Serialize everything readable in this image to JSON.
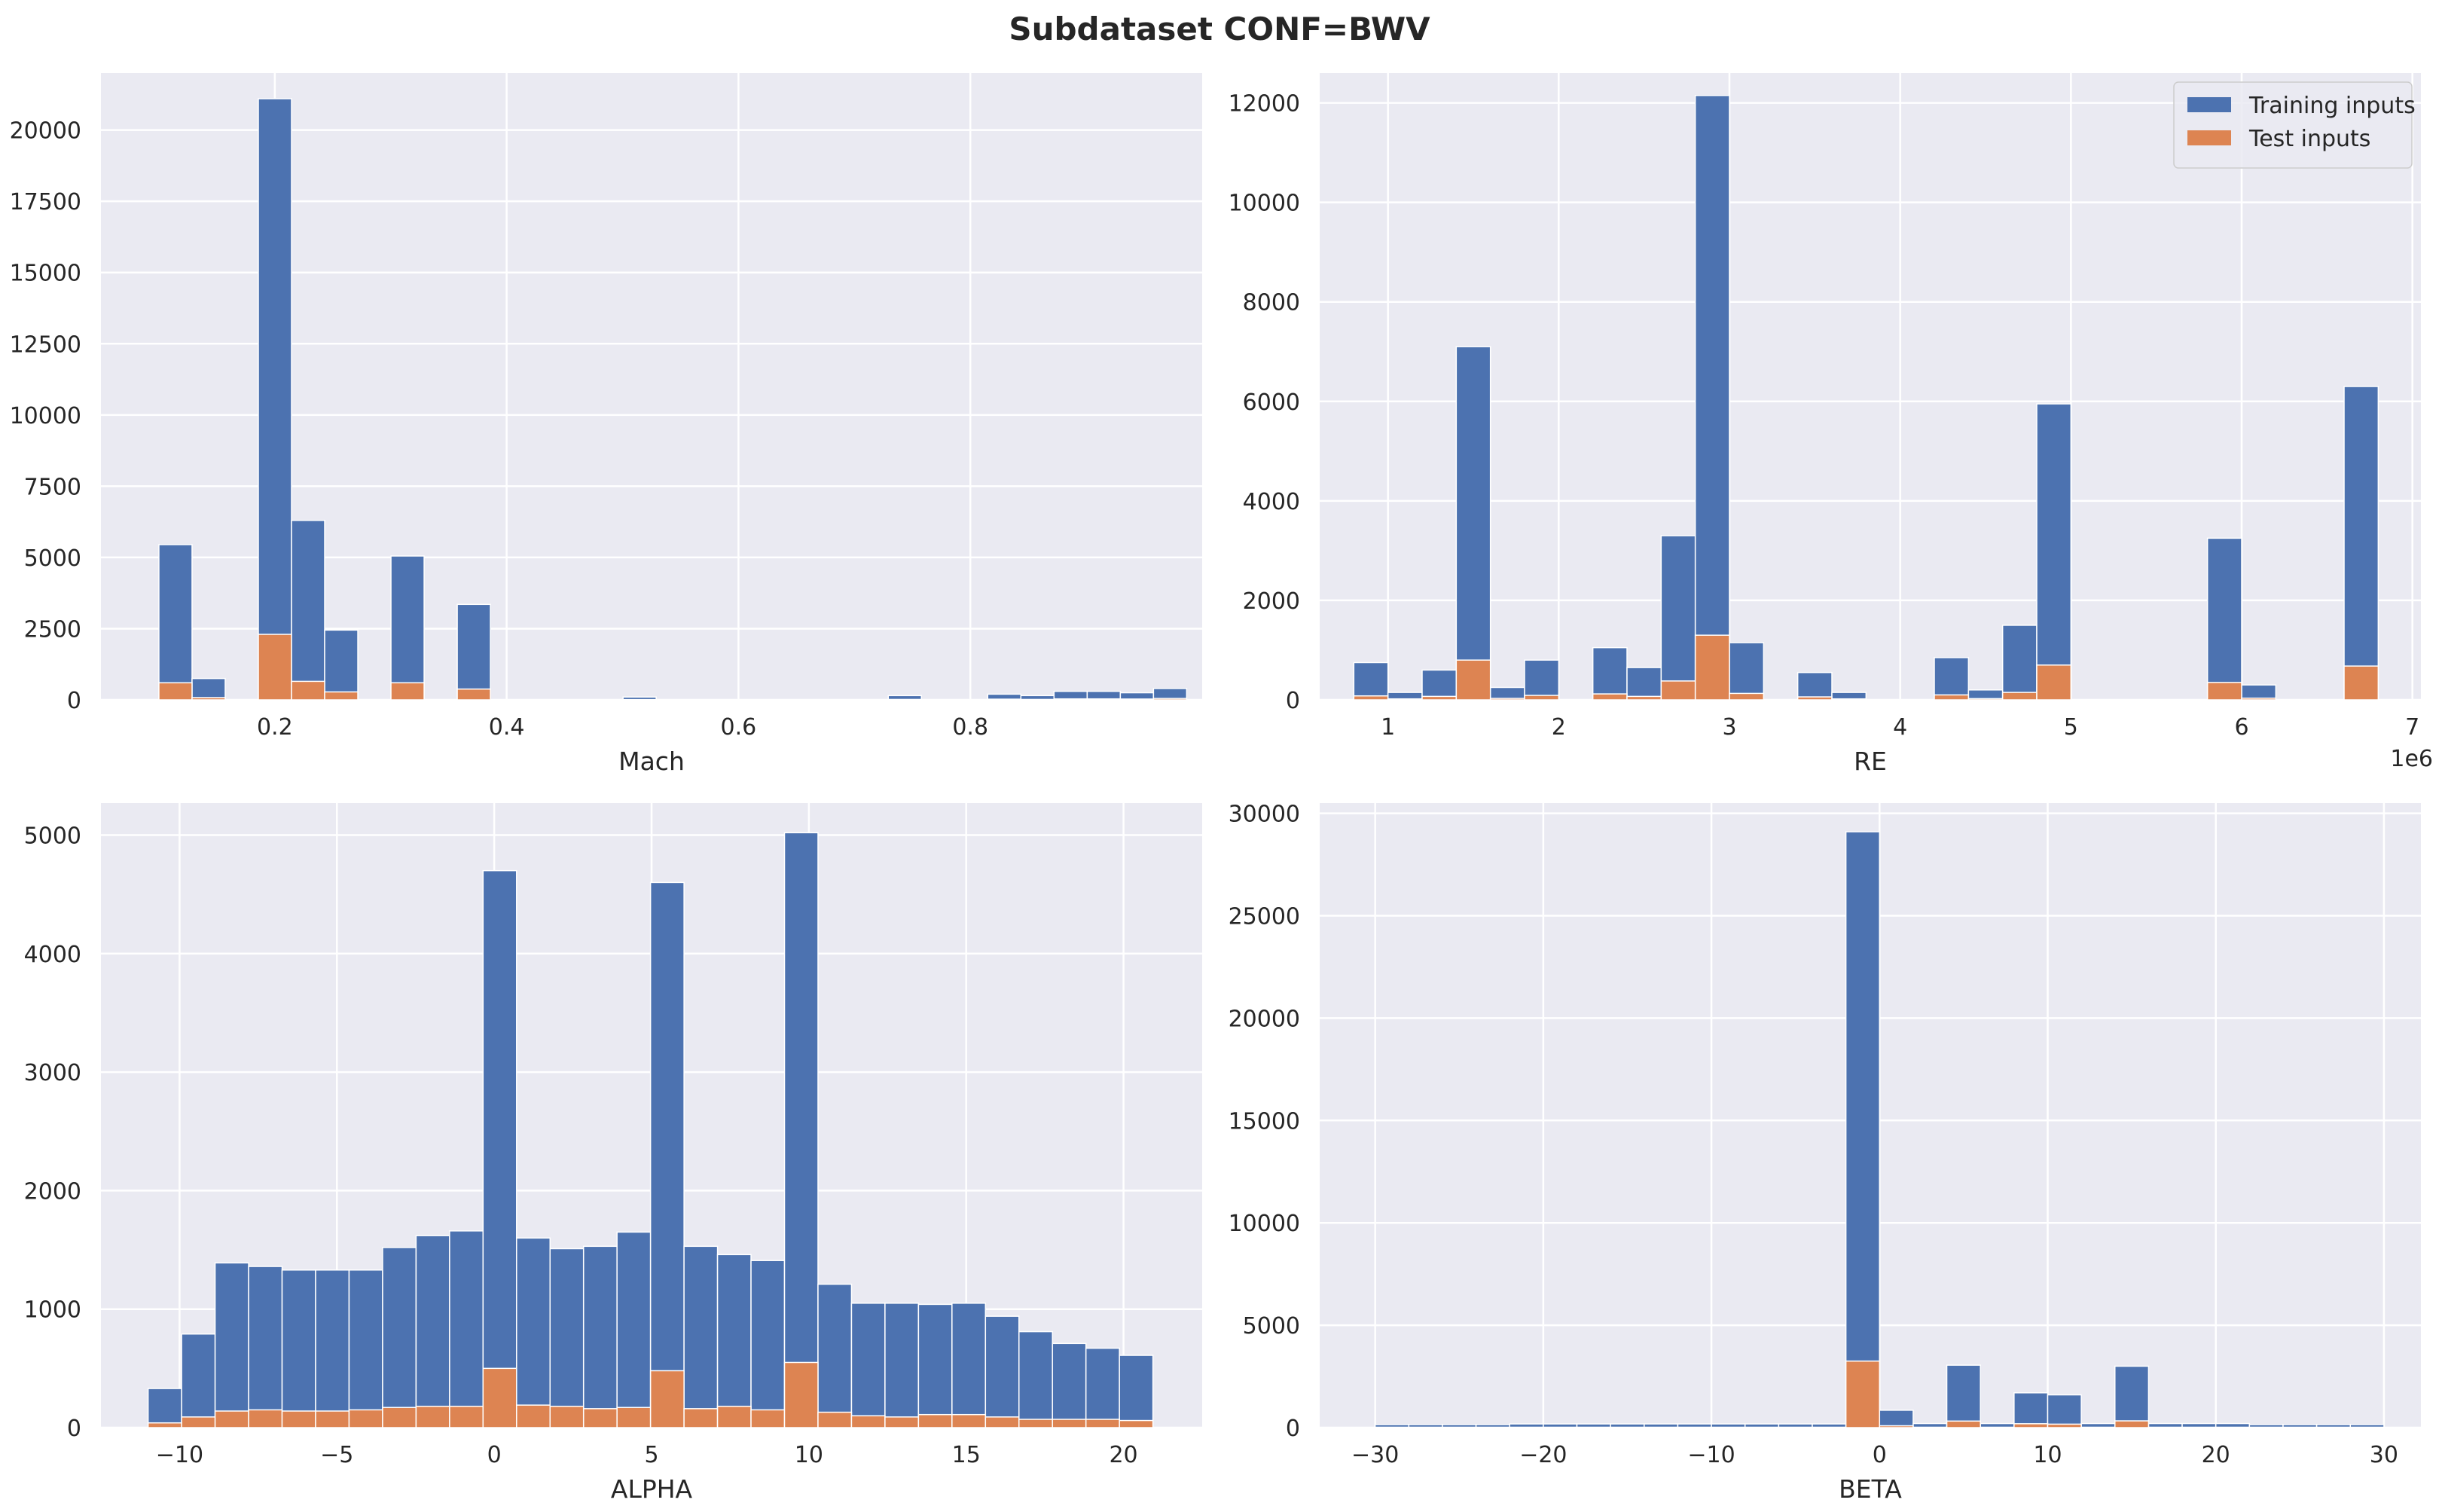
{
  "title": "Subdataset CONF=BWV",
  "colors": {
    "training": "#4c72b0",
    "test": "#dd8452",
    "axes_bg": "#eaeaf2",
    "grid": "#ffffff"
  },
  "legend": {
    "placement": "upper-right",
    "subplot": 1,
    "entries": [
      "Training inputs",
      "Test inputs"
    ]
  },
  "chart_data": [
    {
      "type": "bar",
      "name": "mach-histogram",
      "xlabel": "Mach",
      "offset_text": "",
      "xlim": [
        0.05,
        1.0
      ],
      "ylim": [
        0,
        22000
      ],
      "xticks": [
        0.2,
        0.4,
        0.6,
        0.8
      ],
      "xtick_labels": [
        "0.2",
        "0.4",
        "0.6",
        "0.8"
      ],
      "yticks": [
        0,
        2500,
        5000,
        7500,
        10000,
        12500,
        15000,
        17500,
        20000
      ],
      "ytick_labels": [
        "0",
        "2500",
        "5000",
        "7500",
        "10000",
        "12500",
        "15000",
        "17500",
        "20000"
      ],
      "bin_start": 0.1,
      "bin_width": 0.0286,
      "series": [
        {
          "name": "Training inputs",
          "values": [
            5450,
            750,
            0,
            21100,
            6300,
            2450,
            0,
            5050,
            0,
            3350,
            0,
            0,
            0,
            0,
            100,
            0,
            0,
            0,
            0,
            0,
            0,
            0,
            150,
            0,
            0,
            200,
            150,
            300,
            300,
            250,
            400
          ]
        },
        {
          "name": "Test inputs",
          "values": [
            600,
            80,
            0,
            2300,
            650,
            280,
            0,
            600,
            0,
            380,
            0,
            0,
            0,
            0,
            10,
            0,
            0,
            0,
            0,
            0,
            0,
            0,
            15,
            0,
            0,
            25,
            15,
            35,
            35,
            30,
            50
          ]
        }
      ]
    },
    {
      "type": "bar",
      "name": "re-histogram",
      "xlabel": "RE",
      "offset_text": "1e6",
      "xlim": [
        0.6,
        7.05
      ],
      "ylim": [
        0,
        12600
      ],
      "xticks": [
        1,
        2,
        3,
        4,
        5,
        6,
        7
      ],
      "xtick_labels": [
        "1",
        "2",
        "3",
        "4",
        "5",
        "6",
        "7"
      ],
      "yticks": [
        0,
        2000,
        4000,
        6000,
        8000,
        10000,
        12000
      ],
      "ytick_labels": [
        "0",
        "2000",
        "4000",
        "6000",
        "8000",
        "10000",
        "12000"
      ],
      "bin_start": 0.8,
      "bin_width": 0.2,
      "series": [
        {
          "name": "Training inputs",
          "values": [
            750,
            150,
            600,
            7100,
            250,
            800,
            0,
            1050,
            650,
            3300,
            12150,
            1150,
            0,
            550,
            150,
            0,
            0,
            850,
            200,
            1500,
            5950,
            0,
            0,
            0,
            0,
            3250,
            300,
            0,
            0,
            6300
          ]
        },
        {
          "name": "Test inputs",
          "values": [
            80,
            20,
            70,
            800,
            30,
            90,
            0,
            120,
            70,
            380,
            1300,
            130,
            0,
            60,
            20,
            0,
            0,
            100,
            25,
            150,
            700,
            0,
            0,
            0,
            0,
            350,
            35,
            0,
            0,
            680
          ]
        }
      ]
    },
    {
      "type": "bar",
      "name": "alpha-histogram",
      "xlabel": "ALPHA",
      "offset_text": "",
      "xlim": [
        -12.5,
        22.5
      ],
      "ylim": [
        0,
        5270
      ],
      "xticks": [
        -10,
        -5,
        0,
        5,
        10,
        15,
        20
      ],
      "xtick_labels": [
        "−10",
        "−5",
        "0",
        "5",
        "10",
        "15",
        "20"
      ],
      "yticks": [
        0,
        1000,
        2000,
        3000,
        4000,
        5000
      ],
      "ytick_labels": [
        "0",
        "1000",
        "2000",
        "3000",
        "4000",
        "5000"
      ],
      "bin_start": -11,
      "bin_width": 1.0645,
      "series": [
        {
          "name": "Training inputs",
          "values": [
            330,
            790,
            1390,
            1360,
            1330,
            1330,
            1330,
            1520,
            1620,
            1660,
            4700,
            1600,
            1510,
            1530,
            1650,
            4600,
            1530,
            1460,
            1410,
            5020,
            1210,
            1050,
            1050,
            1040,
            1050,
            940,
            810,
            710,
            670,
            610
          ]
        },
        {
          "name": "Test inputs",
          "values": [
            40,
            90,
            140,
            150,
            140,
            140,
            150,
            170,
            180,
            180,
            500,
            190,
            180,
            160,
            170,
            480,
            160,
            180,
            150,
            550,
            130,
            100,
            90,
            110,
            110,
            90,
            70,
            70,
            70,
            60
          ]
        }
      ]
    },
    {
      "type": "bar",
      "name": "beta-histogram",
      "xlabel": "BETA",
      "offset_text": "",
      "xlim": [
        -33.3,
        32.2
      ],
      "ylim": [
        0,
        30500
      ],
      "xticks": [
        -30,
        -20,
        -10,
        0,
        10,
        20,
        30
      ],
      "xtick_labels": [
        "−30",
        "−20",
        "−10",
        "0",
        "10",
        "20",
        "30"
      ],
      "yticks": [
        0,
        5000,
        10000,
        15000,
        20000,
        25000,
        30000
      ],
      "ytick_labels": [
        "0",
        "5000",
        "10000",
        "15000",
        "20000",
        "25000",
        "30000"
      ],
      "bin_start": -30,
      "bin_width": 2.0,
      "series": [
        {
          "name": "Training inputs",
          "values": [
            150,
            150,
            150,
            150,
            180,
            180,
            180,
            180,
            180,
            180,
            180,
            180,
            180,
            180,
            29100,
            850,
            200,
            3050,
            200,
            1700,
            1600,
            200,
            3000,
            200,
            200,
            200,
            150,
            150,
            150,
            150
          ]
        },
        {
          "name": "Test inputs",
          "values": [
            20,
            20,
            20,
            20,
            20,
            20,
            20,
            20,
            20,
            20,
            20,
            20,
            20,
            20,
            3250,
            90,
            20,
            320,
            20,
            190,
            170,
            20,
            330,
            20,
            20,
            20,
            20,
            20,
            20,
            20
          ]
        }
      ]
    }
  ]
}
